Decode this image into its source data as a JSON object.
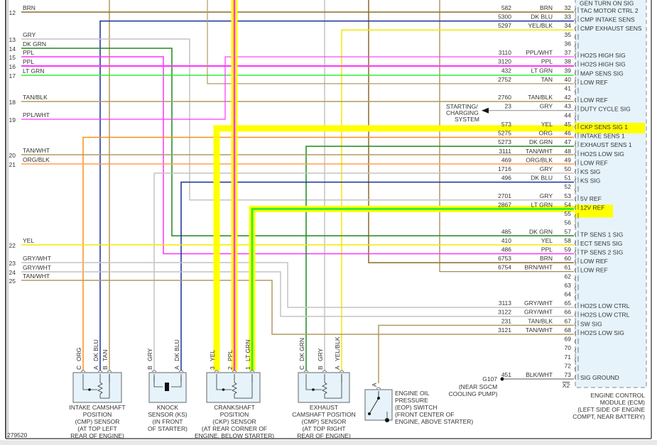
{
  "diagram_id": "279520",
  "wire_colors": {
    "BRN": "#8b6a2a",
    "DK BLU": "#1a2f9a",
    "YEL": "#f2ea00",
    "YEL/BLK": "#f2ea00",
    "GRY": "#c4c4c4",
    "GRY/WHT": "#c4c4c4",
    "DK GRN": "#1d8a1d",
    "PPL": "#ff33ff",
    "PPL/WHT": "#ff33ff",
    "LT GRN": "#33ee33",
    "TAN": "#b09a60",
    "TAN/BLK": "#b09a60",
    "TAN/WHT": "#b09a60",
    "ORG": "#ff8c1a",
    "ORG/BLK": "#ffa04a",
    "BRN/WHT": "#9c7e40",
    "BLK/WHT": "#777777",
    "highlight": "#ffff00",
    "ecm_fill": "#e6f3fb"
  },
  "left_pins": [
    {
      "pin": "12",
      "color": "BRN"
    },
    {
      "pin": "13",
      "color": "GRY"
    },
    {
      "pin": "14",
      "color": "DK GRN"
    },
    {
      "pin": "15",
      "color": "PPL"
    },
    {
      "pin": "16",
      "color": "PPL"
    },
    {
      "pin": "17",
      "color": "LT GRN"
    },
    {
      "pin": "18",
      "color": "TAN/BLK"
    },
    {
      "pin": "19",
      "color": "PPL/WHT"
    },
    {
      "pin": "20",
      "color": "TAN/WHT"
    },
    {
      "pin": "21",
      "color": "ORG/BLK"
    },
    {
      "pin": "22",
      "color": "YEL"
    },
    {
      "pin": "23",
      "color": "GRY/WHT"
    },
    {
      "pin": "24",
      "color": "GRY/WHT"
    },
    {
      "pin": "25",
      "color": "TAN/WHT"
    }
  ],
  "ecm_top_clipped_label": "GEN TURN ON SIG",
  "ecm_pins": [
    {
      "pin": "32",
      "circuit": "582",
      "color": "BRN",
      "function": "TAC MOTOR CTRL 2"
    },
    {
      "pin": "33",
      "circuit": "5300",
      "color": "DK BLU",
      "function": "CMP INTAKE SENS"
    },
    {
      "pin": "34",
      "circuit": "5297",
      "color": "YEL/BLK",
      "function": "CMP EXHAUST SENS"
    },
    {
      "pin": "35",
      "circuit": "",
      "color": "",
      "function": ""
    },
    {
      "pin": "36",
      "circuit": "",
      "color": "",
      "function": ""
    },
    {
      "pin": "37",
      "circuit": "3110",
      "color": "PPL/WHT",
      "function": "HO2S HIGH SIG"
    },
    {
      "pin": "38",
      "circuit": "3120",
      "color": "PPL",
      "function": "HO2S HIGH SIG"
    },
    {
      "pin": "39",
      "circuit": "432",
      "color": "LT GRN",
      "function": "MAP SENS SIG"
    },
    {
      "pin": "40",
      "circuit": "2752",
      "color": "TAN",
      "function": "LOW REF"
    },
    {
      "pin": "41",
      "circuit": "",
      "color": "",
      "function": ""
    },
    {
      "pin": "42",
      "circuit": "2760",
      "color": "TAN/BLK",
      "function": "LOW REF"
    },
    {
      "pin": "43",
      "circuit": "23",
      "color": "GRY",
      "function": "DUTY CYCLE SIG"
    },
    {
      "pin": "44",
      "circuit": "",
      "color": "",
      "function": ""
    },
    {
      "pin": "45",
      "circuit": "573",
      "color": "YEL",
      "function": "CKP SENS SIG 1",
      "highlighted": true
    },
    {
      "pin": "46",
      "circuit": "5275",
      "color": "ORG",
      "function": "INTAKE SENS 1"
    },
    {
      "pin": "47",
      "circuit": "5273",
      "color": "DK GRN",
      "function": "EXHAUST SENS 1"
    },
    {
      "pin": "48",
      "circuit": "3111",
      "color": "TAN/WHT",
      "function": "HO2S LOW SIG"
    },
    {
      "pin": "49",
      "circuit": "469",
      "color": "ORG/BLK",
      "function": "LOW REF"
    },
    {
      "pin": "50",
      "circuit": "1716",
      "color": "GRY",
      "function": "KS SIG"
    },
    {
      "pin": "51",
      "circuit": "496",
      "color": "DK BLU",
      "function": "KS SIG"
    },
    {
      "pin": "52",
      "circuit": "",
      "color": "",
      "function": ""
    },
    {
      "pin": "53",
      "circuit": "2701",
      "color": "GRY",
      "function": "5V REF"
    },
    {
      "pin": "54",
      "circuit": "2867",
      "color": "LT GRN",
      "function": "12V REF",
      "highlighted": true
    },
    {
      "pin": "55",
      "circuit": "",
      "color": "",
      "function": ""
    },
    {
      "pin": "56",
      "circuit": "",
      "color": "",
      "function": ""
    },
    {
      "pin": "57",
      "circuit": "485",
      "color": "DK GRN",
      "function": "TP SENS 1 SIG"
    },
    {
      "pin": "58",
      "circuit": "410",
      "color": "YEL",
      "function": "ECT SENS SIG"
    },
    {
      "pin": "59",
      "circuit": "486",
      "color": "PPL",
      "function": "TP SENS 2 SIG"
    },
    {
      "pin": "60",
      "circuit": "6753",
      "color": "BRN",
      "function": "LOW REF"
    },
    {
      "pin": "61",
      "circuit": "6754",
      "color": "BRN/WHT",
      "function": "LOW REF"
    },
    {
      "pin": "62",
      "circuit": "",
      "color": "",
      "function": ""
    },
    {
      "pin": "63",
      "circuit": "",
      "color": "",
      "function": ""
    },
    {
      "pin": "64",
      "circuit": "",
      "color": "",
      "function": ""
    },
    {
      "pin": "65",
      "circuit": "3113",
      "color": "GRY/WHT",
      "function": "HO2S LOW CTRL"
    },
    {
      "pin": "66",
      "circuit": "3122",
      "color": "GRY/WHT",
      "function": "HO2S LOW CTRL"
    },
    {
      "pin": "67",
      "circuit": "231",
      "color": "TAN/BLK",
      "function": "SW SIG"
    },
    {
      "pin": "68",
      "circuit": "3121",
      "color": "TAN/WHT",
      "function": "HO2S LOW SIG"
    },
    {
      "pin": "69",
      "circuit": "",
      "color": "",
      "function": ""
    },
    {
      "pin": "70",
      "circuit": "",
      "color": "",
      "function": ""
    },
    {
      "pin": "71",
      "circuit": "",
      "color": "",
      "function": ""
    },
    {
      "pin": "72",
      "circuit": "",
      "color": "",
      "function": ""
    },
    {
      "pin": "73",
      "circuit": "451",
      "color": "BLK/WHT",
      "function": "SIG GROUND"
    }
  ],
  "ecm_connector": "X2",
  "ecm_label": [
    "ENGINE CONTROL",
    "MODULE (ECM)",
    "(LEFT SIDE OF ENGINE",
    "COMPT, NEAR BATTERY)"
  ],
  "starting_charging": [
    "STARTING/",
    "CHARGING",
    "SYSTEM"
  ],
  "ground": {
    "id": "G107",
    "location": [
      "(NEAR SGCM",
      "COOLING PUMP)"
    ]
  },
  "sensors": [
    {
      "id": "intake-cmp",
      "label": [
        "INTAKE CAMSHAFT",
        "POSITION",
        "(CMP) SENSOR",
        "(AT TOP LEFT",
        "REAR OF ENGINE)"
      ],
      "pins": [
        {
          "pin": "C",
          "color": "ORG"
        },
        {
          "pin": "A",
          "color": "DK BLU"
        },
        {
          "pin": "B",
          "color": "TAN"
        }
      ]
    },
    {
      "id": "knock",
      "label": [
        "KNOCK",
        "SENSOR (KS)",
        "(IN FRONT",
        "OF STARTER)"
      ],
      "pins": [
        {
          "pin": "B",
          "color": "GRY"
        },
        {
          "pin": "A",
          "color": "DK BLU"
        }
      ]
    },
    {
      "id": "ckp",
      "label": [
        "CRANKSHAFT",
        "POSITION",
        "(CKP) SENSOR",
        "(AT REAR CORNER OF",
        "ENGINE, BELOW STARTER)"
      ],
      "pins": [
        {
          "pin": "3",
          "color": "YEL"
        },
        {
          "pin": "2",
          "color": "PPL"
        },
        {
          "pin": "1",
          "color": "LT GRN"
        }
      ]
    },
    {
      "id": "exhaust-cmp",
      "label": [
        "EXHAUST",
        "CAMSHAFT POSITION",
        "(CMP) SENSOR",
        "(AT TOP RIGHT",
        "REAR OF ENGINE)"
      ],
      "pins": [
        {
          "pin": "C",
          "color": "DK GRN"
        },
        {
          "pin": "B",
          "color": "GRY"
        },
        {
          "pin": "A",
          "color": "YEL/BLK"
        }
      ]
    },
    {
      "id": "eop",
      "label": [
        "ENGINE OIL",
        "PRESSURE",
        "(EOP) SWITCH",
        "(FRONT CENTER OF",
        "ENGINE, ABOVE STARTER)"
      ],
      "pins": [
        {
          "pin": "A",
          "color": ""
        }
      ]
    }
  ]
}
